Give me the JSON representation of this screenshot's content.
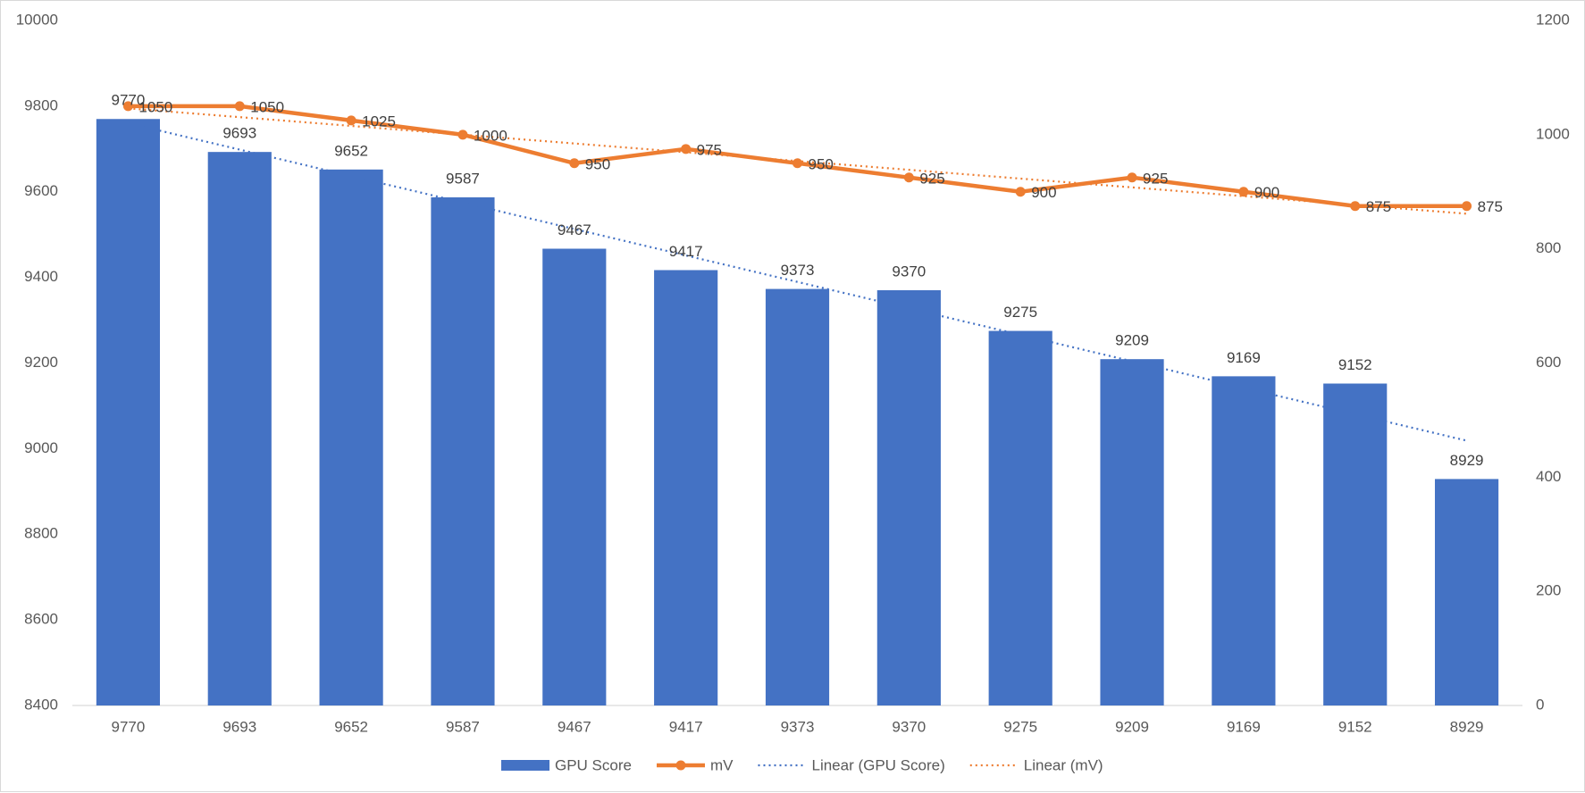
{
  "chart_data": {
    "type": "bar",
    "categories": [
      "9770",
      "9693",
      "9652",
      "9587",
      "9467",
      "9417",
      "9373",
      "9370",
      "9275",
      "9209",
      "9169",
      "9152",
      "8929"
    ],
    "series": [
      {
        "name": "GPU Score",
        "type": "bar",
        "axis": "left",
        "color": "#4472C4",
        "values": [
          9770,
          9693,
          9652,
          9587,
          9467,
          9417,
          9373,
          9370,
          9275,
          9209,
          9169,
          9152,
          8929
        ],
        "labels": [
          "9770",
          "9693",
          "9652",
          "9587",
          "9467",
          "9417",
          "9373",
          "9370",
          "9275",
          "9209",
          "9169",
          "9152",
          "8929"
        ]
      },
      {
        "name": "mV",
        "type": "line",
        "axis": "right",
        "color": "#ED7D31",
        "values": [
          1050,
          1050,
          1025,
          1000,
          950,
          975,
          950,
          925,
          900,
          925,
          900,
          875,
          875
        ],
        "labels": [
          "1050",
          "1050",
          "1025",
          "1000",
          "950",
          "975",
          "950",
          "925",
          "900",
          "925",
          "900",
          "875",
          "875"
        ]
      }
    ],
    "trendlines": [
      {
        "name": "Linear (GPU Score)",
        "of": "GPU Score",
        "style": "dotted",
        "color": "#4472C4"
      },
      {
        "name": "Linear (mV)",
        "of": "mV",
        "style": "dotted",
        "color": "#ED7D31"
      }
    ],
    "y_left": {
      "min": 8400,
      "max": 10000,
      "step": 200,
      "ticks": [
        "8400",
        "8600",
        "8800",
        "9000",
        "9200",
        "9400",
        "9600",
        "9800",
        "10000"
      ]
    },
    "y_right": {
      "min": 0,
      "max": 1200,
      "step": 200,
      "ticks": [
        "0",
        "200",
        "400",
        "600",
        "800",
        "1000",
        "1200"
      ]
    },
    "grid": false,
    "legend_position": "bottom",
    "legend": [
      "GPU Score",
      "mV",
      "Linear (GPU Score)",
      "Linear (mV)"
    ],
    "axis_color": "#d9d9d9"
  }
}
